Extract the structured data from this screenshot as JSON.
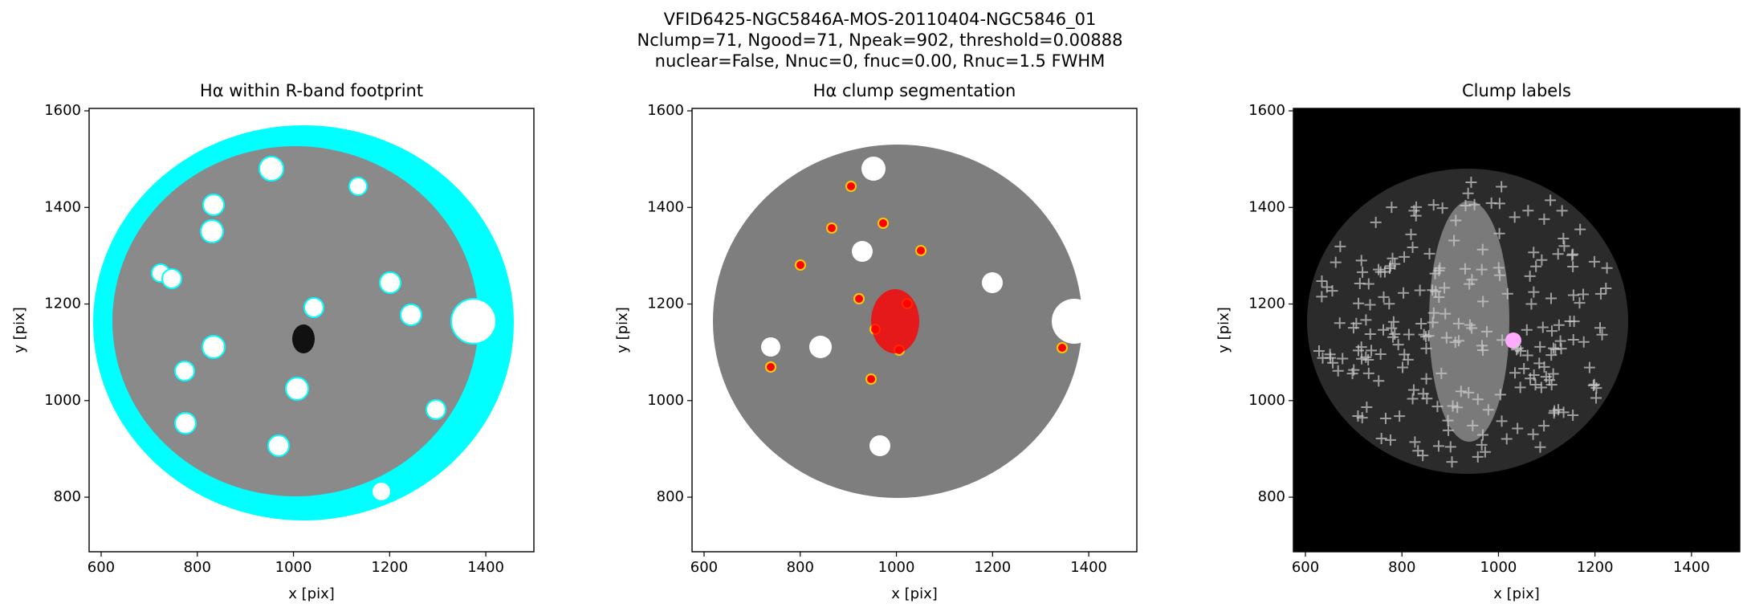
{
  "title": [
    "VFID6425-NGC5846A-MOS-20110404-NGC5846_01",
    "Nclump=71, Ngood=71, Npeak=902, threshold=0.00888",
    "nuclear=False, Nnuc=0, fnuc=0.00, Rnuc=1.5 FWHM"
  ],
  "chart_data": [
    {
      "type": "image",
      "title": "Hα within R-band footprint",
      "xlabel": "x [pix]",
      "ylabel": "y [pix]",
      "xlim": [
        575,
        1500
      ],
      "ylim": [
        687,
        1605
      ],
      "xticks": [
        600,
        800,
        1000,
        1200,
        1400
      ],
      "yticks": [
        800,
        1000,
        1200,
        1400,
        1600
      ]
    },
    {
      "type": "image",
      "title": "Hα clump segmentation",
      "xlabel": "x [pix]",
      "ylabel": "y [pix]",
      "xlim": [
        575,
        1500
      ],
      "ylim": [
        687,
        1605
      ],
      "xticks": [
        600,
        800,
        1000,
        1200,
        1400
      ],
      "yticks": [
        800,
        1000,
        1200,
        1400,
        1600
      ]
    },
    {
      "type": "image",
      "title": "Clump labels",
      "xlabel": "x [pix]",
      "ylabel": "y [pix]",
      "xlim": [
        575,
        1500
      ],
      "ylim": [
        687,
        1605
      ],
      "xticks": [
        600,
        800,
        1000,
        1200,
        1400
      ],
      "yticks": [
        800,
        1000,
        1200,
        1400,
        1600
      ]
    }
  ]
}
